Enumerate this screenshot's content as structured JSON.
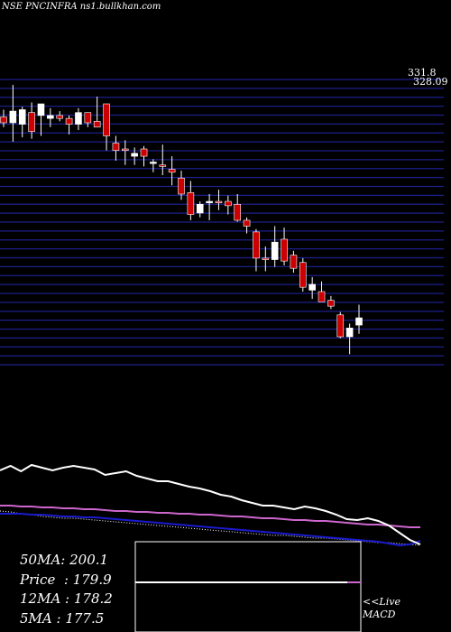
{
  "title": "NSE PNCINFRA ns1.bullkhan.com",
  "summary": [
    {
      "label": "50MA",
      "value": "200.1"
    },
    {
      "label": "Price",
      "value": "179.9"
    },
    {
      "label": "12MA",
      "value": "178.2"
    },
    {
      "label": "5MA",
      "value": "177.5"
    }
  ],
  "macd_caption": [
    "<<Live",
    "MACD"
  ],
  "colors": {
    "background": "#000000",
    "grid": "#1c1f8a",
    "bull": "#ffffff",
    "bear": "#cc0000",
    "ma_white": "#ffffff",
    "ma_blue": "#1a1acc",
    "ma_magenta": "#cc66cc",
    "ma_dotted": "#ffffff"
  },
  "chart_data": {
    "type": "candlestick",
    "price_top_label": "331.8",
    "price_top_label_2": "328.09",
    "ylim": [
      168,
      331.8
    ],
    "candles": [
      {
        "o": 309,
        "h": 314,
        "l": 302,
        "c": 305
      },
      {
        "o": 305,
        "h": 331,
        "l": 292,
        "c": 313
      },
      {
        "o": 304,
        "h": 316,
        "l": 295,
        "c": 314
      },
      {
        "o": 312,
        "h": 319,
        "l": 294,
        "c": 299
      },
      {
        "o": 310,
        "h": 318,
        "l": 296,
        "c": 318
      },
      {
        "o": 308,
        "h": 315,
        "l": 302,
        "c": 310
      },
      {
        "o": 310,
        "h": 313,
        "l": 306,
        "c": 308
      },
      {
        "o": 308,
        "h": 310,
        "l": 297,
        "c": 304
      },
      {
        "o": 304,
        "h": 315,
        "l": 300,
        "c": 312
      },
      {
        "o": 312,
        "h": 312,
        "l": 302,
        "c": 305
      },
      {
        "o": 306,
        "h": 323,
        "l": 303,
        "c": 302
      },
      {
        "o": 318,
        "h": 318,
        "l": 286,
        "c": 296
      },
      {
        "o": 291,
        "h": 296,
        "l": 279,
        "c": 286
      },
      {
        "o": 287,
        "h": 293,
        "l": 276,
        "c": 286
      },
      {
        "o": 282,
        "h": 288,
        "l": 276,
        "c": 284
      },
      {
        "o": 287,
        "h": 289,
        "l": 275,
        "c": 282
      },
      {
        "o": 277,
        "h": 280,
        "l": 271,
        "c": 278
      },
      {
        "o": 276,
        "h": 290,
        "l": 269,
        "c": 275
      },
      {
        "o": 273,
        "h": 282,
        "l": 262,
        "c": 271
      },
      {
        "o": 267,
        "h": 272,
        "l": 252,
        "c": 256
      },
      {
        "o": 257,
        "h": 265,
        "l": 238,
        "c": 242
      },
      {
        "o": 243,
        "h": 251,
        "l": 240,
        "c": 249
      },
      {
        "o": 250,
        "h": 256,
        "l": 238,
        "c": 251
      },
      {
        "o": 251,
        "h": 259,
        "l": 245,
        "c": 250
      },
      {
        "o": 251,
        "h": 255,
        "l": 242,
        "c": 248
      },
      {
        "o": 249,
        "h": 256,
        "l": 237,
        "c": 238
      },
      {
        "o": 238,
        "h": 240,
        "l": 229,
        "c": 234
      },
      {
        "o": 230,
        "h": 232,
        "l": 203,
        "c": 212
      },
      {
        "o": 212,
        "h": 220,
        "l": 203,
        "c": 211
      },
      {
        "o": 211,
        "h": 234,
        "l": 206,
        "c": 223
      },
      {
        "o": 225,
        "h": 233,
        "l": 207,
        "c": 210
      },
      {
        "o": 214,
        "h": 217,
        "l": 202,
        "c": 205
      },
      {
        "o": 209,
        "h": 212,
        "l": 189,
        "c": 192
      },
      {
        "o": 190,
        "h": 199,
        "l": 184,
        "c": 194
      },
      {
        "o": 189,
        "h": 196,
        "l": 182,
        "c": 182
      },
      {
        "o": 183,
        "h": 186,
        "l": 177,
        "c": 179
      },
      {
        "o": 173,
        "h": 175,
        "l": 157,
        "c": 158
      },
      {
        "o": 158,
        "h": 167,
        "l": 146,
        "c": 164
      },
      {
        "o": 166,
        "h": 180,
        "l": 160,
        "c": 171
      }
    ],
    "ma_lines": {
      "white": [
        521,
        516,
        522,
        515,
        518,
        521,
        518,
        516,
        518,
        520,
        526,
        524,
        522,
        527,
        530,
        533,
        533,
        536,
        539,
        541,
        544,
        548,
        550,
        554,
        557,
        560,
        560,
        562,
        564,
        561,
        563,
        566,
        570,
        575,
        576,
        574,
        577,
        582,
        590,
        598,
        603
      ],
      "blue": [
        569,
        569,
        569,
        570,
        570,
        571,
        572,
        572,
        573,
        573,
        574,
        575,
        576,
        577,
        578,
        579,
        580,
        581,
        582,
        583,
        584,
        585,
        586,
        587,
        588,
        589,
        590,
        591,
        592,
        593,
        594,
        595,
        596,
        597,
        598,
        599,
        600,
        602,
        604,
        603,
        599
      ],
      "magenta": [
        560,
        560,
        561,
        561,
        562,
        562,
        563,
        563,
        564,
        564,
        565,
        566,
        566,
        567,
        567,
        568,
        568,
        569,
        569,
        570,
        570,
        571,
        572,
        572,
        573,
        574,
        574,
        575,
        576,
        576,
        577,
        577,
        578,
        579,
        580,
        581,
        581,
        582,
        583,
        584,
        584
      ],
      "dotted": [
        566,
        567,
        569,
        570,
        572,
        573,
        574,
        574,
        575,
        576,
        577,
        578,
        579,
        580,
        581,
        582,
        583,
        584,
        585,
        586,
        587,
        588,
        589,
        590,
        591,
        592,
        593,
        593,
        594,
        595,
        596,
        596,
        597,
        598,
        599,
        600,
        601,
        601,
        602,
        603,
        604
      ]
    },
    "macd": {
      "signal_level": 0.55
    }
  }
}
